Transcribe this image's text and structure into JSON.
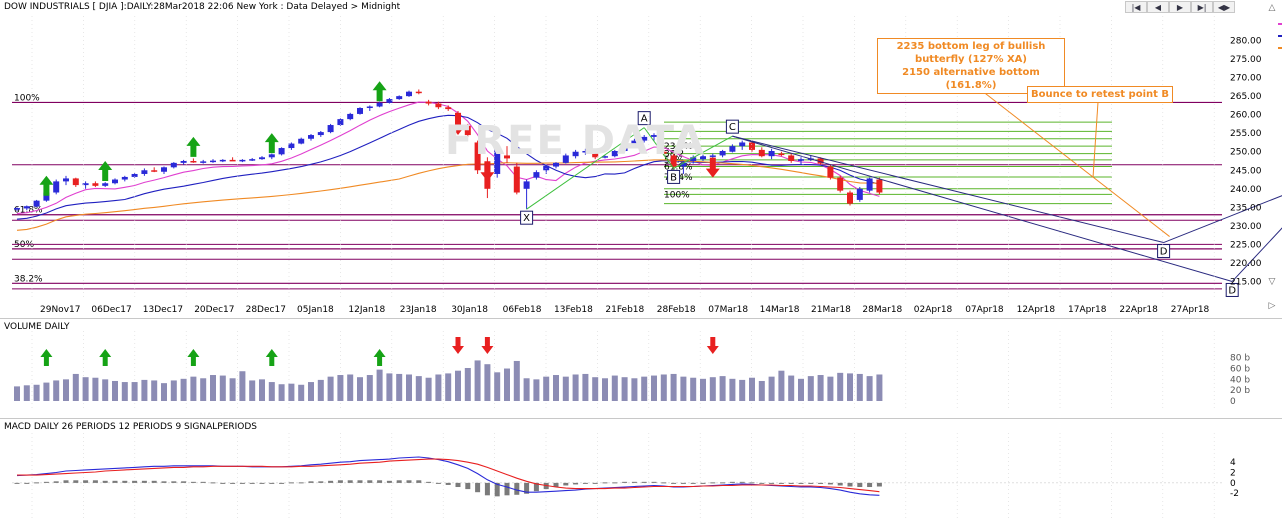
{
  "header": "DOW INDUSTRIALS [ DJIA ]:DAILY:28Mar2018 22:06 New York : Data Delayed > Midnight",
  "toolbar": [
    "|◀",
    "◀",
    "▶",
    "▶|",
    "◀▶"
  ],
  "watermark": "FREE DATA",
  "annotations": {
    "butterfly": [
      "2235 bottom leg of bullish",
      "butterfly (127% XA)",
      "2150 alternative bottom (161.8%)"
    ],
    "bounce": "Bounce to retest point B"
  },
  "chart_data": [
    {
      "type": "candlestick",
      "title": "",
      "ylim": [
        210,
        285
      ],
      "yticks": [
        "280.00",
        "275.00",
        "270.00",
        "265.00",
        "260.00",
        "255.00",
        "250.00",
        "245.00",
        "240.00",
        "235.00",
        "230.00",
        "225.00",
        "220.00",
        "215.00"
      ],
      "ytick_values": [
        280,
        275,
        270,
        265,
        260,
        255,
        250,
        245,
        240,
        235,
        230,
        225,
        220,
        215
      ],
      "xticks": [
        "29Nov17",
        "06Dec17",
        "13Dec17",
        "20Dec17",
        "28Dec17",
        "05Jan18",
        "12Jan18",
        "23Jan18",
        "30Jan18",
        "06Feb18",
        "13Feb18",
        "21Feb18",
        "28Feb18",
        "07Mar18",
        "14Mar18",
        "21Mar18",
        "28Mar18",
        "02Apr18",
        "07Apr18",
        "12Apr18",
        "17Apr18",
        "22Apr18",
        "27Apr18"
      ],
      "candles": [
        [
          234.5,
          235.0,
          234.0,
          234.8
        ],
        [
          234.7,
          235.5,
          234.2,
          235.3
        ],
        [
          235.2,
          237.0,
          235.0,
          236.8
        ],
        [
          236.8,
          239.5,
          236.5,
          239.0
        ],
        [
          239.0,
          242.5,
          238.5,
          242.0
        ],
        [
          242.0,
          243.5,
          241.0,
          242.8
        ],
        [
          242.8,
          243.0,
          240.5,
          241.0
        ],
        [
          241.0,
          242.0,
          240.0,
          241.5
        ],
        [
          241.5,
          242.0,
          240.5,
          240.8
        ],
        [
          240.8,
          241.8,
          240.5,
          241.5
        ],
        [
          241.5,
          242.8,
          241.2,
          242.5
        ],
        [
          242.5,
          243.5,
          242.0,
          243.2
        ],
        [
          243.2,
          244.2,
          243.0,
          244.0
        ],
        [
          244.0,
          245.5,
          243.5,
          245.0
        ],
        [
          245.0,
          245.8,
          244.5,
          244.6
        ],
        [
          244.6,
          246.0,
          244.0,
          245.8
        ],
        [
          245.8,
          247.2,
          245.5,
          247.0
        ],
        [
          247.0,
          247.8,
          246.5,
          247.5
        ],
        [
          247.5,
          248.2,
          247.0,
          247.2
        ],
        [
          247.2,
          247.8,
          246.8,
          247.4
        ],
        [
          247.4,
          248.0,
          247.0,
          247.6
        ],
        [
          247.6,
          248.0,
          247.2,
          247.8
        ],
        [
          247.8,
          248.5,
          247.5,
          247.6
        ],
        [
          247.6,
          248.0,
          247.2,
          247.8
        ],
        [
          247.8,
          248.3,
          247.5,
          248.0
        ],
        [
          248.0,
          248.8,
          247.8,
          248.5
        ],
        [
          248.5,
          249.5,
          248.0,
          249.3
        ],
        [
          249.3,
          251.2,
          249.0,
          251.0
        ],
        [
          251.0,
          252.5,
          250.5,
          252.2
        ],
        [
          252.2,
          253.8,
          252.0,
          253.5
        ],
        [
          253.5,
          254.8,
          253.0,
          254.5
        ],
        [
          254.5,
          255.6,
          254.0,
          255.3
        ],
        [
          255.3,
          257.5,
          255.0,
          257.2
        ],
        [
          257.2,
          259.0,
          257.0,
          258.8
        ],
        [
          258.8,
          260.5,
          258.5,
          260.2
        ],
        [
          260.2,
          262.0,
          260.0,
          261.8
        ],
        [
          261.8,
          262.5,
          261.0,
          262.2
        ],
        [
          262.2,
          263.5,
          262.0,
          263.2
        ],
        [
          263.2,
          264.5,
          263.0,
          264.2
        ],
        [
          264.2,
          265.2,
          264.0,
          265.0
        ],
        [
          265.0,
          266.5,
          264.8,
          266.2
        ],
        [
          266.2,
          266.8,
          265.5,
          265.8
        ],
        [
          263.5,
          264.0,
          262.5,
          263.0
        ],
        [
          263.0,
          263.5,
          261.5,
          262.0
        ],
        [
          262.0,
          262.5,
          261.0,
          261.5
        ],
        [
          260.5,
          261.0,
          257.0,
          257.5
        ],
        [
          257.0,
          257.5,
          254.0,
          254.5
        ],
        [
          252.5,
          253.0,
          244.0,
          245.0
        ],
        [
          247.0,
          248.5,
          237.5,
          240.0
        ],
        [
          244.0,
          251.5,
          243.0,
          250.8
        ],
        [
          249.0,
          251.5,
          247.0,
          248.2
        ],
        [
          246.0,
          247.0,
          238.5,
          239.0
        ],
        [
          240.0,
          242.5,
          234.5,
          242.0
        ],
        [
          243.0,
          245.0,
          242.5,
          244.5
        ],
        [
          245.0,
          246.5,
          244.0,
          246.2
        ],
        [
          246.0,
          247.2,
          245.5,
          247.0
        ],
        [
          247.0,
          249.5,
          246.8,
          249.0
        ],
        [
          248.8,
          250.5,
          248.2,
          250.0
        ],
        [
          250.0,
          250.8,
          249.2,
          250.2
        ],
        [
          249.5,
          250.2,
          248.0,
          248.5
        ],
        [
          248.5,
          249.0,
          248.2,
          248.8
        ],
        [
          248.8,
          250.5,
          248.5,
          250.2
        ],
        [
          250.2,
          252.5,
          250.0,
          252.2
        ],
        [
          252.0,
          253.5,
          251.5,
          253.0
        ],
        [
          253.0,
          254.5,
          252.5,
          254.0
        ],
        [
          254.0,
          255.0,
          253.0,
          254.5
        ],
        [
          250.0,
          250.5,
          249.0,
          249.5
        ],
        [
          249.0,
          249.5,
          245.5,
          246.0
        ],
        [
          246.0,
          247.5,
          244.0,
          247.0
        ],
        [
          247.5,
          249.0,
          246.8,
          248.5
        ],
        [
          248.0,
          249.2,
          247.5,
          248.8
        ],
        [
          248.8,
          249.5,
          248.2,
          249.0
        ],
        [
          249.0,
          250.5,
          248.5,
          250.2
        ],
        [
          250.0,
          252.0,
          249.8,
          251.5
        ],
        [
          251.5,
          253.0,
          250.5,
          252.5
        ],
        [
          252.5,
          253.0,
          250.0,
          250.5
        ],
        [
          250.5,
          251.2,
          248.5,
          248.8
        ],
        [
          248.8,
          250.8,
          248.0,
          250.2
        ],
        [
          249.5,
          250.0,
          248.8,
          249.2
        ],
        [
          249.0,
          249.5,
          247.0,
          247.5
        ],
        [
          247.5,
          248.5,
          246.5,
          248.0
        ],
        [
          248.0,
          249.0,
          247.5,
          248.2
        ],
        [
          248.2,
          248.5,
          246.5,
          246.8
        ],
        [
          246.0,
          246.5,
          242.5,
          243.0
        ],
        [
          243.0,
          243.5,
          239.0,
          239.5
        ],
        [
          239.0,
          239.5,
          235.5,
          236.0
        ],
        [
          237.0,
          240.5,
          236.5,
          240.0
        ],
        [
          239.5,
          243.0,
          239.0,
          242.8
        ],
        [
          242.5,
          243.0,
          238.5,
          239.0
        ]
      ],
      "fib_levels": [
        {
          "label": "100%",
          "value": 263.3
        },
        {
          "label": "61.8%",
          "value": 233.0
        },
        {
          "label": "50%",
          "value": 223.8
        },
        {
          "label": "38.2%",
          "value": 214.5
        }
      ],
      "inner_fib_levels": [
        {
          "label": "23.6%",
          "value": 251.5
        },
        {
          "label": "38.2",
          "value": 249.5
        },
        {
          "label": "50%",
          "value": 247.8
        },
        {
          "label": "61.8%",
          "value": 246.0
        },
        {
          "label": "76.4%",
          "value": 243.2
        },
        {
          "label": "100%",
          "value": 238.5
        }
      ],
      "pattern_points": [
        {
          "label": "X",
          "date_index": 52,
          "value": 234.5
        },
        {
          "label": "A",
          "date_index": 64,
          "value": 256.5
        },
        {
          "label": "B",
          "date_index": 67,
          "value": 245.5
        },
        {
          "label": "C",
          "date_index": 73,
          "value": 254.2
        },
        {
          "label": "D",
          "date_index": 117,
          "value": 225.5
        },
        {
          "label": "D",
          "date_index": 124,
          "value": 215.0
        },
        {
          "label": "B",
          "date_index": 134,
          "value": 243.3
        }
      ],
      "arrows_up_idx": [
        3,
        9,
        18,
        26,
        37
      ],
      "arrows_down_idx": [
        45,
        48,
        71
      ],
      "target_up_idx": 133
    },
    {
      "type": "bar",
      "title": "VOLUME DAILY",
      "ylim": [
        0,
        85
      ],
      "yticks": [
        "80 b",
        "60 b",
        "40 b",
        "20 b",
        "0"
      ],
      "ytick_values": [
        80,
        60,
        40,
        20,
        0
      ],
      "values": [
        27,
        29,
        30,
        34,
        38,
        40,
        50,
        44,
        43,
        40,
        37,
        35,
        35,
        39,
        38,
        33,
        38,
        41,
        45,
        42,
        48,
        47,
        42,
        55,
        38,
        40,
        35,
        31,
        32,
        30,
        35,
        39,
        45,
        48,
        49,
        44,
        48,
        58,
        51,
        50,
        49,
        46,
        43,
        49,
        51,
        56,
        61,
        75,
        68,
        53,
        60,
        74,
        42,
        40,
        45,
        48,
        45,
        49,
        50,
        44,
        42,
        47,
        44,
        42,
        45,
        47,
        49,
        50,
        45,
        43,
        41,
        44,
        46,
        41,
        39,
        43,
        37,
        45,
        56,
        47,
        41,
        46,
        48,
        45,
        52,
        51,
        50,
        46,
        49
      ]
    },
    {
      "type": "line",
      "title": "MACD DAILY 26 PERIODS 12 PERIODS 9 SIGNALPERIODS",
      "ylim": [
        -3.5,
        5
      ],
      "yticks": [
        "4",
        "2",
        "0",
        "-2"
      ],
      "ytick_values": [
        4,
        2,
        0,
        -2
      ],
      "series": [
        {
          "color": "#2a2ad8",
          "values": [
            1.4,
            1.5,
            1.6,
            1.8,
            2.0,
            2.3,
            2.4,
            2.5,
            2.6,
            2.7,
            2.8,
            2.9,
            3.0,
            3.1,
            3.2,
            3.2,
            3.3,
            3.3,
            3.3,
            3.3,
            3.3,
            3.2,
            3.2,
            3.2,
            3.1,
            3.1,
            3.1,
            3.1,
            3.2,
            3.3,
            3.5,
            3.6,
            3.8,
            4.0,
            4.1,
            4.3,
            4.4,
            4.5,
            4.6,
            4.8,
            4.9,
            5.0,
            4.8,
            4.5,
            4.1,
            3.5,
            2.8,
            1.8,
            0.6,
            -0.3,
            -0.8,
            -1.4,
            -1.8,
            -1.8,
            -1.7,
            -1.6,
            -1.5,
            -1.4,
            -1.2,
            -1.1,
            -1.0,
            -0.9,
            -0.8,
            -0.7,
            -0.6,
            -0.5,
            -0.6,
            -0.8,
            -0.8,
            -0.7,
            -0.6,
            -0.5,
            -0.4,
            -0.3,
            -0.2,
            -0.3,
            -0.4,
            -0.5,
            -0.6,
            -0.7,
            -0.8,
            -0.8,
            -0.9,
            -1.1,
            -1.4,
            -1.8,
            -2.1,
            -2.3,
            -2.4
          ]
        },
        {
          "color": "#e82020",
          "values": [
            1.5,
            1.5,
            1.5,
            1.6,
            1.7,
            1.8,
            1.9,
            2.0,
            2.1,
            2.3,
            2.4,
            2.5,
            2.6,
            2.7,
            2.8,
            2.9,
            3.0,
            3.0,
            3.1,
            3.1,
            3.2,
            3.2,
            3.2,
            3.2,
            3.2,
            3.2,
            3.1,
            3.1,
            3.1,
            3.2,
            3.2,
            3.3,
            3.4,
            3.5,
            3.6,
            3.8,
            3.9,
            4.0,
            4.2,
            4.3,
            4.4,
            4.5,
            4.6,
            4.6,
            4.5,
            4.3,
            4.0,
            3.6,
            3.0,
            2.3,
            1.6,
            0.9,
            0.3,
            -0.2,
            -0.5,
            -0.8,
            -1.0,
            -1.1,
            -1.1,
            -1.1,
            -1.1,
            -1.0,
            -1.0,
            -0.9,
            -0.8,
            -0.7,
            -0.7,
            -0.7,
            -0.7,
            -0.7,
            -0.6,
            -0.6,
            -0.5,
            -0.5,
            -0.4,
            -0.4,
            -0.4,
            -0.4,
            -0.5,
            -0.5,
            -0.6,
            -0.6,
            -0.7,
            -0.8,
            -0.9,
            -1.1,
            -1.3,
            -1.5,
            -1.7
          ]
        }
      ],
      "histogram": [
        -0.1,
        0.0,
        0.1,
        0.2,
        0.3,
        0.5,
        0.5,
        0.5,
        0.5,
        0.4,
        0.4,
        0.4,
        0.4,
        0.4,
        0.4,
        0.3,
        0.3,
        0.3,
        0.2,
        0.2,
        0.1,
        0.0,
        0.0,
        0.0,
        -0.1,
        -0.1,
        0.0,
        0.0,
        0.1,
        0.1,
        0.3,
        0.3,
        0.4,
        0.5,
        0.5,
        0.5,
        0.5,
        0.5,
        0.4,
        0.5,
        0.5,
        0.5,
        0.2,
        -0.1,
        -0.4,
        -0.8,
        -1.2,
        -1.8,
        -2.4,
        -2.6,
        -2.4,
        -2.3,
        -2.1,
        -1.6,
        -1.2,
        -0.8,
        -0.5,
        -0.3,
        -0.1,
        0.0,
        0.1,
        0.1,
        0.2,
        0.2,
        0.2,
        0.2,
        0.1,
        -0.1,
        -0.1,
        0.0,
        0.0,
        0.1,
        0.1,
        0.2,
        0.2,
        0.1,
        0.0,
        -0.1,
        -0.1,
        -0.2,
        -0.2,
        -0.2,
        -0.2,
        -0.3,
        -0.5,
        -0.7,
        -0.8,
        -0.8,
        -0.7
      ]
    }
  ]
}
